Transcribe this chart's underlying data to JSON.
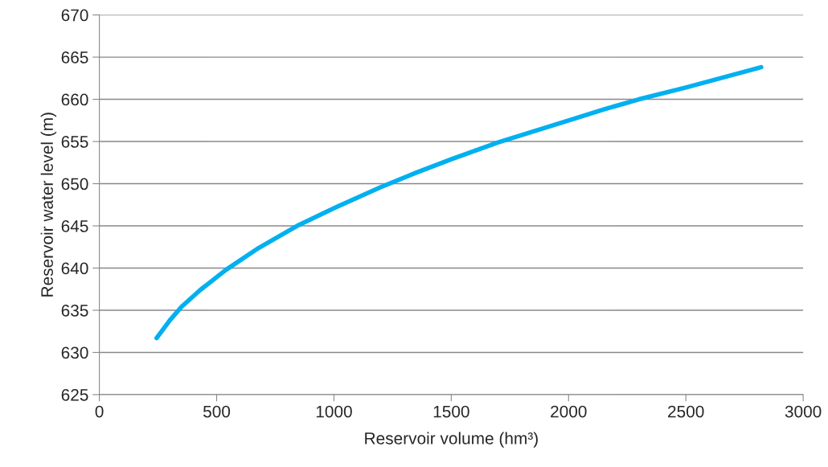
{
  "chart_data": {
    "type": "line",
    "xlabel": "Reservoir volume (hm³)",
    "ylabel": "Reservoir water level (m)",
    "series": [
      {
        "color": "#00b0f0",
        "x": [
          244,
          300,
          350,
          430,
          540,
          680,
          850,
          1000,
          1200,
          1350,
          1500,
          1700,
          2000,
          2150,
          2300,
          2500,
          2821
        ],
        "values": [
          631.7,
          633.8,
          635.4,
          637.4,
          639.8,
          642.4,
          645.1,
          647.1,
          649.6,
          651.3,
          652.9,
          654.9,
          657.5,
          658.8,
          660.0,
          661.4,
          663.8
        ]
      }
    ],
    "xlim": [
      0,
      3000
    ],
    "xticks": [
      0,
      500,
      1000,
      1500,
      2000,
      2500,
      3000
    ],
    "ylim": [
      625,
      670
    ],
    "yticks": [
      625,
      630,
      635,
      640,
      645,
      650,
      655,
      660,
      665,
      670
    ],
    "grid": "y",
    "marker": "none",
    "line_style": "solid"
  }
}
